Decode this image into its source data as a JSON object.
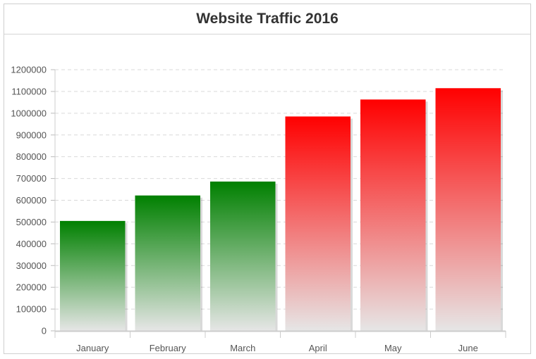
{
  "chart_data": {
    "type": "bar",
    "title": "Website Traffic 2016",
    "categories": [
      "January",
      "February",
      "March",
      "April",
      "May",
      "June"
    ],
    "values": [
      505000,
      622000,
      686000,
      985000,
      1063000,
      1115000
    ],
    "bar_colors": [
      "#008000",
      "#008000",
      "#008000",
      "#ff0000",
      "#ff0000",
      "#ff0000"
    ],
    "gradient_end_color": "#e6e6e6",
    "ylim": [
      0,
      1200000
    ],
    "y_ticks": [
      0,
      100000,
      200000,
      300000,
      400000,
      500000,
      600000,
      700000,
      800000,
      900000,
      1000000,
      1100000,
      1200000
    ],
    "grid": true,
    "xlabel": "",
    "ylabel": ""
  }
}
